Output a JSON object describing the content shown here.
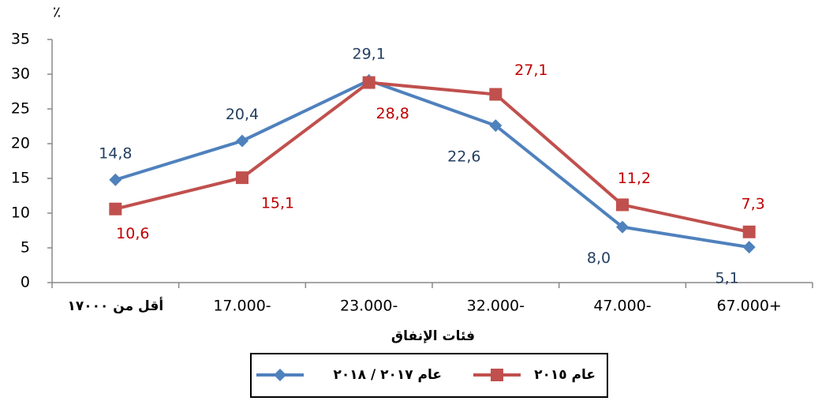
{
  "chart_data": {
    "type": "line",
    "y_unit": "٪",
    "x_label": "فئات الإنفاق",
    "categories": [
      "أقل من ١٧٠٠٠",
      "17.000-",
      "23.000-",
      "32.000-",
      "47.000-",
      "67.000+"
    ],
    "series": [
      {
        "name": "عام ٢٠١٧ / ٢٠١٨",
        "color": "#4f81bd",
        "label_color": "#243f60",
        "marker": "diamond",
        "values": [
          14.8,
          20.4,
          29.1,
          22.6,
          8.0,
          5.1
        ],
        "value_labels": [
          "14,8",
          "20,4",
          "29,1",
          "22,6",
          "8,0",
          "5,1"
        ]
      },
      {
        "name": "عام ٢٠١٥",
        "color": "#c0504d",
        "label_color": "#c00000",
        "marker": "square",
        "values": [
          10.6,
          15.1,
          28.8,
          27.1,
          11.2,
          7.3
        ],
        "value_labels": [
          "10,6",
          "15,1",
          "28,8",
          "27,1",
          "11,2",
          "7,3"
        ]
      }
    ],
    "ylim": [
      0,
      35
    ],
    "yticks": [
      0,
      5,
      10,
      15,
      20,
      25,
      30,
      35
    ],
    "grid": false
  }
}
